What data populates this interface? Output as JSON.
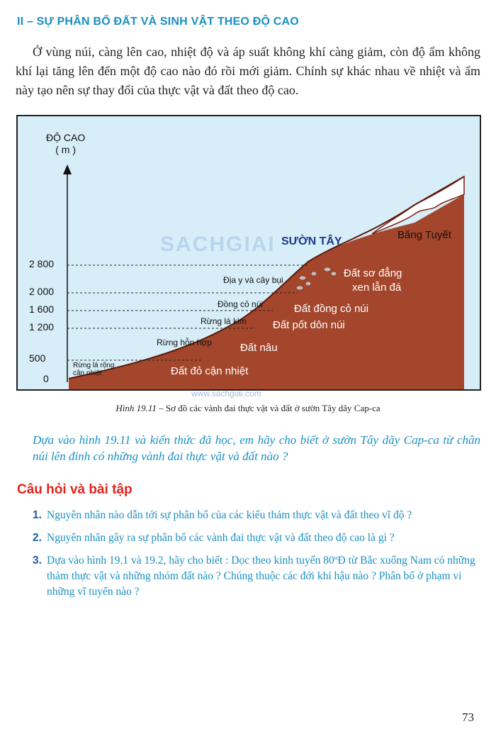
{
  "section_title": "II – SỰ PHÂN BỐ ĐẤT VÀ SINH VẬT THEO ĐỘ CAO",
  "intro_paragraph": "Ở vùng núi, càng lên cao, nhiệt độ và áp suất không khí càng giảm, còn độ ẩm không khí lại tăng lên đến một độ cao nào đó rồi mới giảm. Chính sự khác nhau về nhiệt và ẩm này tạo nên sự thay đổi của thực vật và đất theo độ cao.",
  "figure": {
    "y_axis_title_line1": "ĐỘ CAO",
    "y_axis_title_line2": "( m )",
    "y_ticks": [
      "2 800",
      "2 000",
      "1 600",
      "1 200",
      "500",
      "0"
    ],
    "slope_title": "SƯỜN TÂY",
    "snow_label": "Băng Tuyết",
    "vegetation_belts": {
      "shrubs": "Địa y và cây bụi",
      "meadow": "Đồng cỏ núi",
      "conifer": "Rừng lá kim",
      "mixed": "Rừng hỗn hợp",
      "broadleaf_line1": "Rừng lá rộng",
      "broadleaf_line2": "cận nhiệt"
    },
    "soil_belts": {
      "primitive_line1": "Đất sơ đẳng",
      "primitive_line2": "xen lẫn đá",
      "meadow_soil": "Đất đồng cỏ núi",
      "podzol": "Đất pốt dôn núi",
      "brown": "Đất nâu",
      "red": "Đất đỏ cận nhiệt"
    },
    "colors": {
      "sky": "#d7edf7",
      "soil": "#a4462c",
      "snow": "#ffffff",
      "dash": "#222222"
    }
  },
  "watermark": "SACHGIAI",
  "watermark_url": "www.sachgiai.com",
  "caption_label": "Hình 19.11",
  "caption_text": " – Sơ đồ các vành đai thực vật và đất ở sườn Tây dãy Cap-ca",
  "question_text": "Dựa vào hình 19.11 và kiến thức đã học, em hãy cho biết ở sườn Tây dãy Cap-ca từ chân núi lên đỉnh có những vành đai thực vật và đất nào ?",
  "exercise_title": "Câu hỏi và bài tập",
  "exercises": [
    {
      "num": "1.",
      "text": "Nguyên nhân nào dẫn tới sự phân bố của các kiểu thảm thực vật và đất theo vĩ độ ?"
    },
    {
      "num": "2.",
      "text": "Nguyên nhân gây ra sự phân bố các vành đai thực vật và đất theo độ cao là gì ?"
    },
    {
      "num": "3.",
      "text": "Dựa vào hình 19.1 và 19.2, hãy cho biết  : Dọc theo kinh tuyến 80ºĐ từ Bắc xuống Nam có những thảm thực vật và những nhóm đất nào ? Chúng thuộc các đới khí hậu nào ? Phân bố ở phạm vi những vĩ tuyến nào ?"
    }
  ],
  "page_number": "73"
}
